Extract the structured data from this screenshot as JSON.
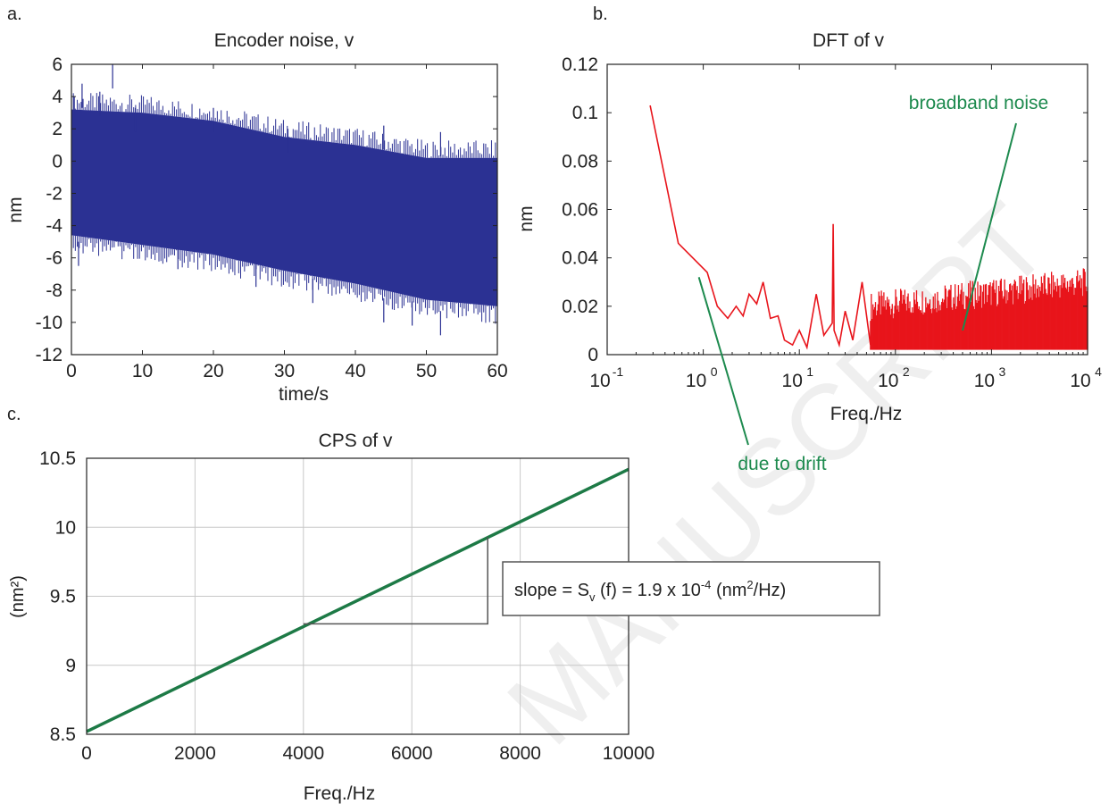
{
  "watermark": "MANUSCRIPT",
  "colors": {
    "panel_a": "#2b3193",
    "panel_b": "#e8141b",
    "panel_c": "#1d7a46",
    "annotation": "#1d8a4e",
    "box": "#555555"
  },
  "chart_data": [
    {
      "id": "a",
      "panel_label": "a.",
      "type": "area",
      "title": "Encoder noise, v",
      "xlabel": "time/s",
      "ylabel": "nm",
      "xlim": [
        0,
        60
      ],
      "ylim": [
        -12,
        6
      ],
      "xticks": [
        "0",
        "10",
        "20",
        "30",
        "40",
        "50",
        "60"
      ],
      "yticks": [
        "6",
        "4",
        "2",
        "0",
        "-2",
        "-4",
        "-6",
        "-8",
        "-10",
        "-12"
      ],
      "series": [
        {
          "x": [
            0,
            10,
            20,
            30,
            40,
            50,
            60
          ],
          "upper": [
            3.2,
            3.0,
            2.5,
            1.5,
            1.0,
            0.2,
            0.2
          ],
          "lower": [
            -4.6,
            -5.2,
            -5.8,
            -6.8,
            -7.6,
            -8.6,
            -9.0
          ]
        }
      ],
      "spikes": [
        {
          "x": 0.4,
          "y": 4.0
        },
        {
          "x": 1.5,
          "y": 4.8
        },
        {
          "x": 4.0,
          "y": 4.3
        },
        {
          "x": 5.8,
          "y": 6.0
        },
        {
          "x": 9.0,
          "y": 3.3
        },
        {
          "x": 20.0,
          "y": 3.3
        },
        {
          "x": 30.5,
          "y": 2.0
        },
        {
          "x": 44.0,
          "y": 2.2
        },
        {
          "x": 52.0,
          "y": 1.8
        },
        {
          "x": 1.0,
          "y": -6.5
        },
        {
          "x": 15.0,
          "y": -6.7
        },
        {
          "x": 26.0,
          "y": -7.8
        },
        {
          "x": 34.0,
          "y": -8.8
        },
        {
          "x": 44.0,
          "y": -10.0
        },
        {
          "x": 48.0,
          "y": -10.2
        },
        {
          "x": 52.0,
          "y": -10.8
        }
      ],
      "grid": false
    },
    {
      "id": "b",
      "panel_label": "b.",
      "type": "line",
      "title": "DFT of v",
      "xlabel": "Freq./Hz",
      "ylabel": "nm",
      "xscale": "log",
      "xlim": [
        0.1,
        10000
      ],
      "ylim": [
        0,
        0.12
      ],
      "xtick_exponents": [
        "-1",
        "0",
        "1",
        "2",
        "3",
        "4"
      ],
      "yticks": [
        "0.12",
        "0.1",
        "0.08",
        "0.06",
        "0.04",
        "0.02",
        "0"
      ],
      "series": [
        {
          "x": [
            0.28,
            0.55,
            1.1,
            1.4,
            1.8,
            2.2,
            2.6,
            3.0,
            3.6,
            4.2,
            5.0,
            6.0,
            7.0,
            8.5,
            10,
            12,
            15,
            18,
            22,
            22.5,
            23,
            26,
            30,
            36,
            45,
            55
          ],
          "y": [
            0.103,
            0.046,
            0.034,
            0.02,
            0.015,
            0.02,
            0.016,
            0.025,
            0.021,
            0.03,
            0.015,
            0.016,
            0.006,
            0.004,
            0.01,
            0.003,
            0.025,
            0.008,
            0.013,
            0.054,
            0.01,
            0.004,
            0.018,
            0.006,
            0.03,
            0.004
          ]
        }
      ],
      "noise_band": {
        "from": 55,
        "to": 10000,
        "upper_start": 0.02,
        "upper_end": 0.03
      },
      "annotations": [
        {
          "text": "broadband noise",
          "x": 500,
          "y": 0.01
        },
        {
          "text": "due to drift",
          "x": 0.9,
          "y": 0.032
        }
      ],
      "grid": false
    },
    {
      "id": "c",
      "panel_label": "c.",
      "type": "line",
      "title": "CPS of v",
      "xlabel": "Freq./Hz",
      "ylabel": "(nm²)",
      "xlim": [
        0,
        10000
      ],
      "ylim": [
        8.5,
        10.5
      ],
      "xticks": [
        "0",
        "2000",
        "4000",
        "6000",
        "8000",
        "10000"
      ],
      "yticks": [
        "10.5",
        "10",
        "9.5",
        "9",
        "8.5"
      ],
      "series": [
        {
          "x": [
            0,
            10000
          ],
          "y": [
            8.52,
            10.42
          ]
        }
      ],
      "slope_triangle": {
        "x0": 4000,
        "x1": 7400,
        "y_low": 9.3,
        "y_high": 9.93
      },
      "annotation": {
        "prefix": "slope = S",
        "sub": "v",
        "mid": " (f) = 1.9 x 10",
        "sup": "-4",
        "units_pre": " (nm",
        "units_sup": "2",
        "units_post": "/Hz)"
      },
      "grid": true
    }
  ]
}
